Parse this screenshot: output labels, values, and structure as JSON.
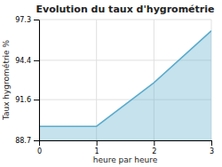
{
  "chart_data": {
    "type": "area",
    "title": "Evolution du taux d'hygrométrie",
    "xlabel": "heure par heure",
    "ylabel": "Taux hygrométrie %",
    "x": [
      0,
      1,
      2,
      3
    ],
    "values": [
      89.7,
      89.7,
      92.8,
      96.5
    ],
    "xlim": [
      0,
      3
    ],
    "ylim": [
      88.7,
      97.3
    ],
    "xticks": [
      0,
      1,
      2,
      3
    ],
    "yticks": [
      88.7,
      91.6,
      94.4,
      97.3
    ],
    "color": "#5aabcc",
    "grid": true
  }
}
